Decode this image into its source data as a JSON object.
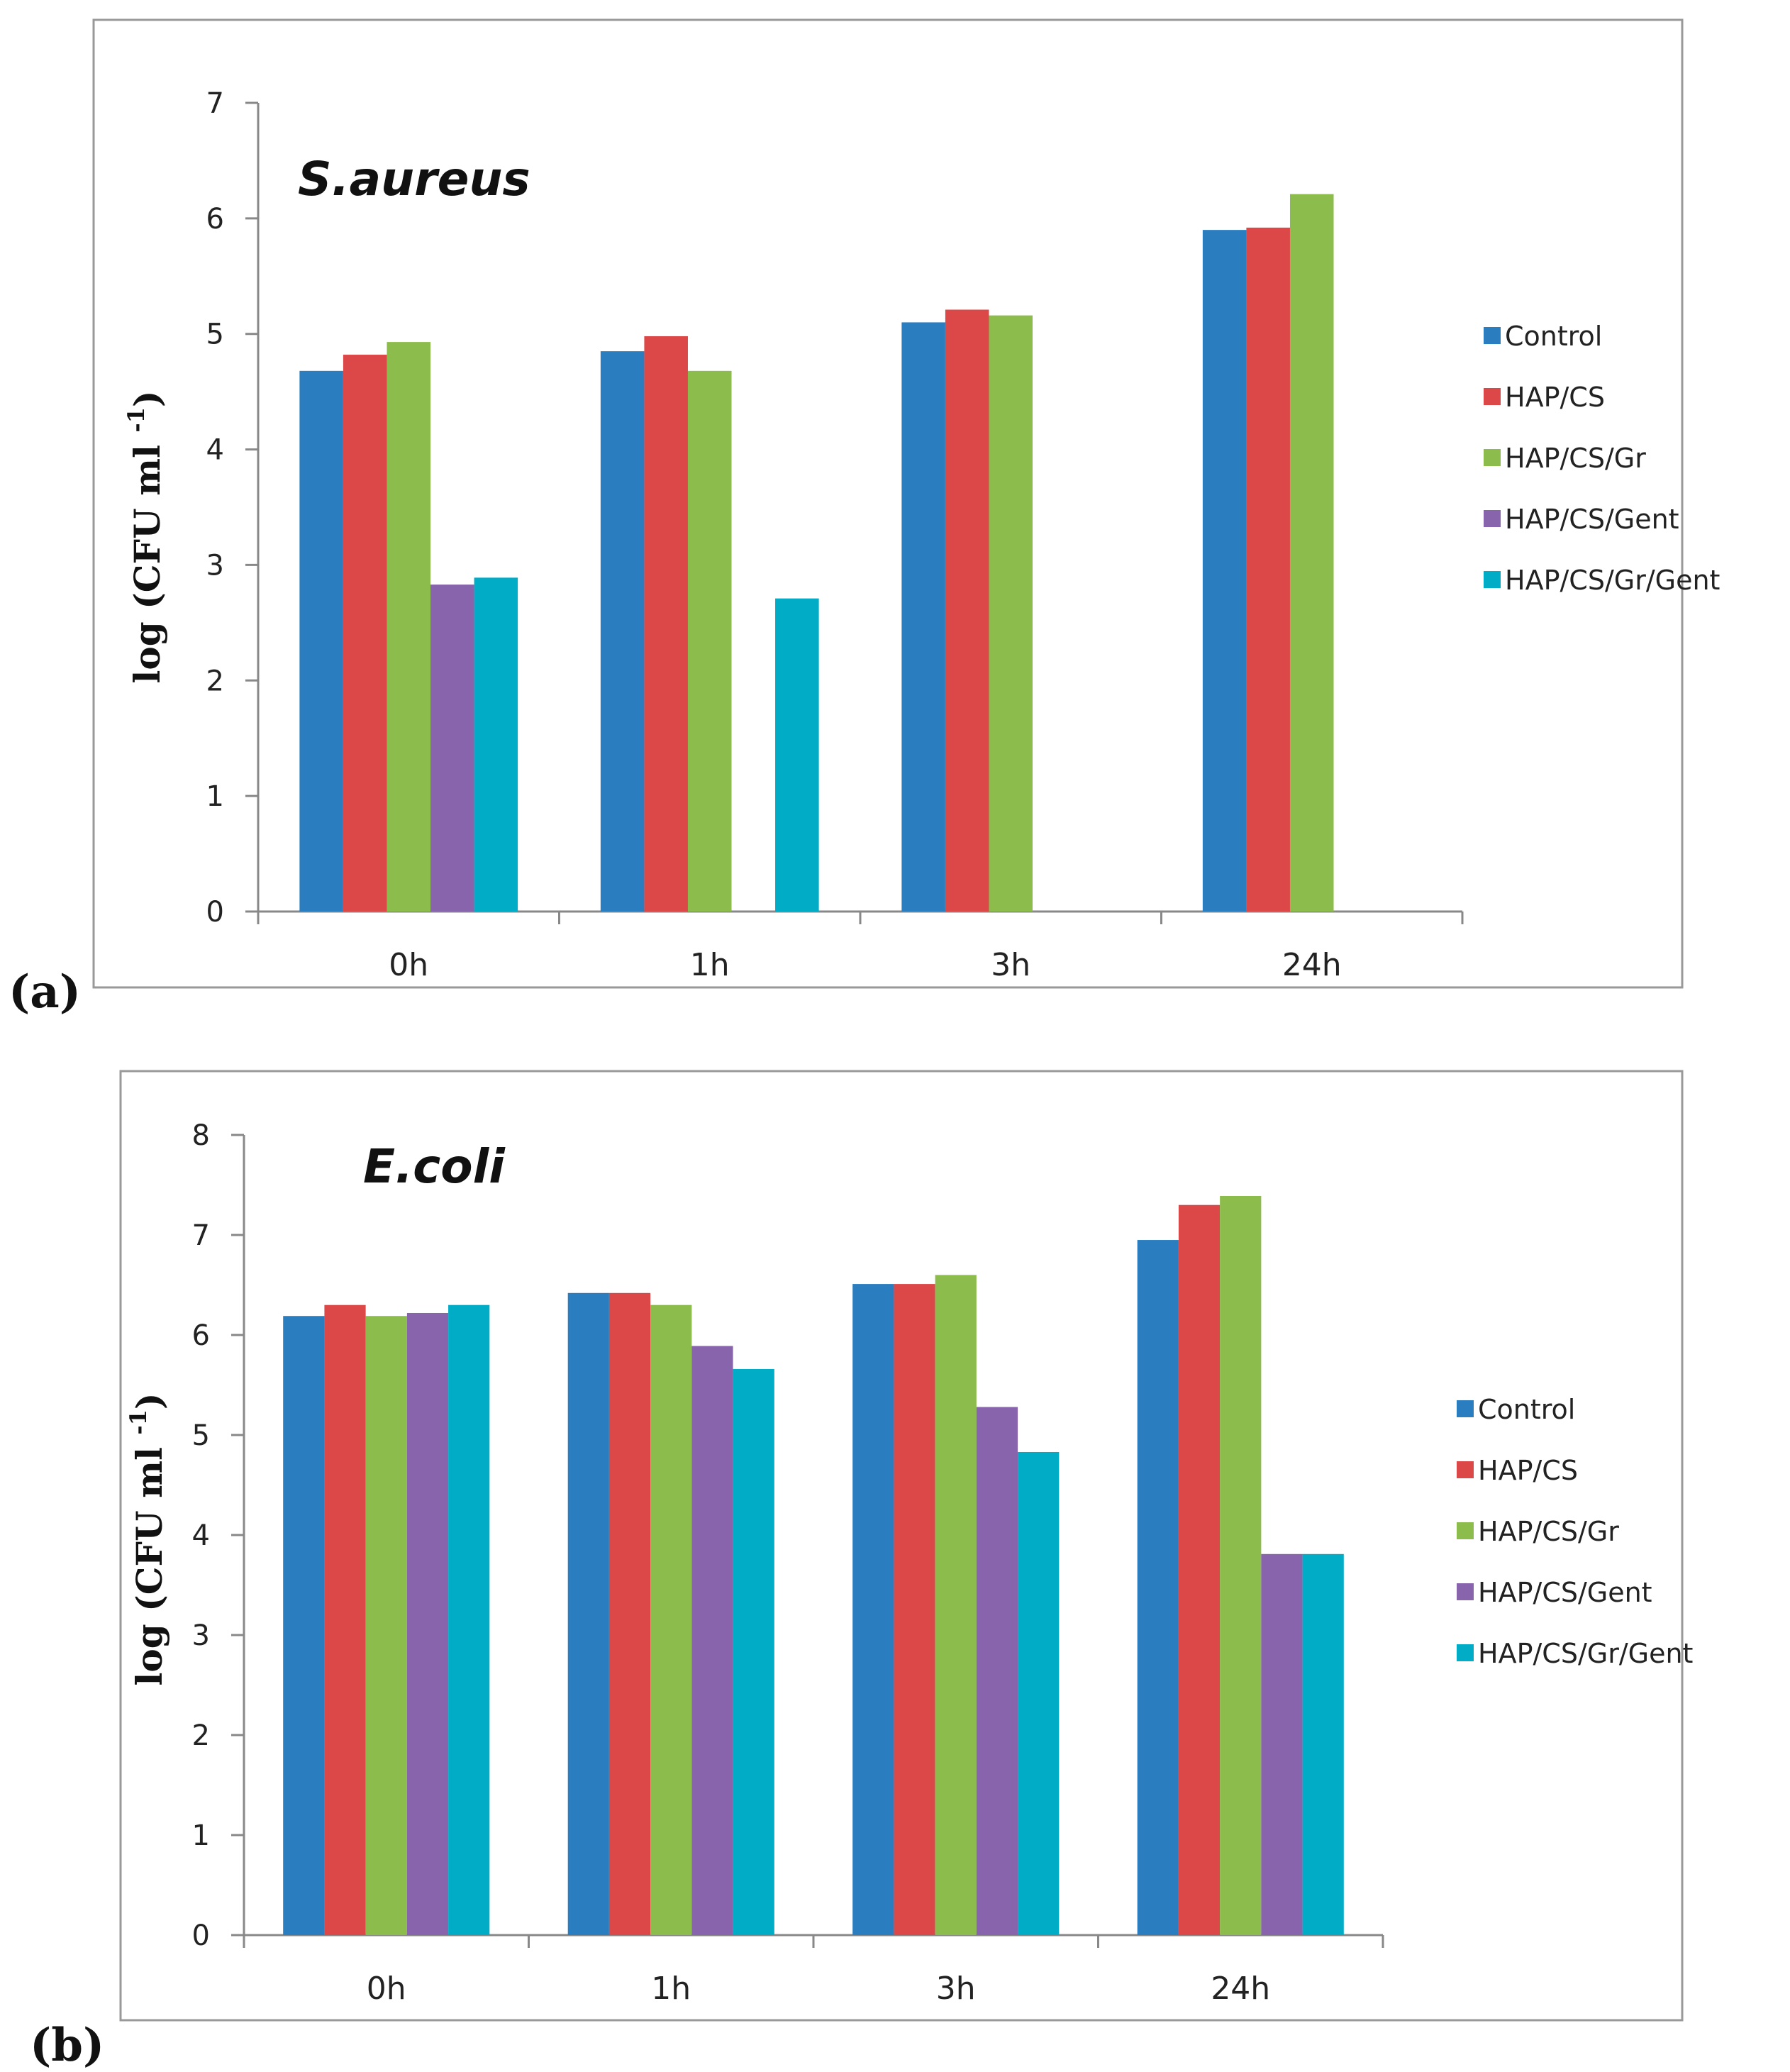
{
  "colors": {
    "Control": "#2a7ebf",
    "HAP/CS": "#dc4848",
    "HAP/CS/Gr": "#8cbc4c",
    "HAP/CS/Gent": "#8764ac",
    "HAP/CS/Gr/Gent": "#00acc6",
    "axis": "#888888",
    "frame": "#999999"
  },
  "chart_data": [
    {
      "type": "bar",
      "panel_label": "(a)",
      "title": "S.aureus",
      "ylabel_main": "log (CFU ml",
      "ylabel_sup": "-1",
      "ylabel_end": ")",
      "xlabel": "",
      "ylim": [
        0,
        7
      ],
      "yticks": [
        "0",
        "1",
        "2",
        "3",
        "4",
        "5",
        "6",
        "7"
      ],
      "categories": [
        "0h",
        "1h",
        "3h",
        "24h"
      ],
      "legend_position": "right",
      "series": [
        {
          "name": "Control",
          "values": [
            4.68,
            4.85,
            5.1,
            5.9
          ]
        },
        {
          "name": "HAP/CS",
          "values": [
            4.82,
            4.98,
            5.21,
            5.92
          ]
        },
        {
          "name": "HAP/CS/Gr",
          "values": [
            4.93,
            4.68,
            5.16,
            6.21
          ]
        },
        {
          "name": "HAP/CS/Gent",
          "values": [
            2.83,
            null,
            null,
            null
          ]
        },
        {
          "name": "HAP/CS/Gr/Gent",
          "values": [
            2.89,
            2.71,
            null,
            null
          ]
        }
      ]
    },
    {
      "type": "bar",
      "panel_label": "(b)",
      "title": "E.coli",
      "ylabel_main": "log (CFU ml",
      "ylabel_sup": "-1",
      "ylabel_end": ")",
      "xlabel": "",
      "ylim": [
        0,
        8
      ],
      "yticks": [
        "0",
        "1",
        "2",
        "3",
        "4",
        "5",
        "6",
        "7",
        "8"
      ],
      "categories": [
        "0h",
        "1h",
        "3h",
        "24h"
      ],
      "legend_position": "right",
      "series": [
        {
          "name": "Control",
          "values": [
            6.19,
            6.42,
            6.51,
            6.95
          ]
        },
        {
          "name": "HAP/CS",
          "values": [
            6.3,
            6.42,
            6.51,
            7.3
          ]
        },
        {
          "name": "HAP/CS/Gr",
          "values": [
            6.19,
            6.3,
            6.6,
            7.39
          ]
        },
        {
          "name": "HAP/CS/Gent",
          "values": [
            6.22,
            5.89,
            5.28,
            3.81
          ]
        },
        {
          "name": "HAP/CS/Gr/Gent",
          "values": [
            6.3,
            5.66,
            4.83,
            3.81
          ]
        }
      ]
    }
  ]
}
